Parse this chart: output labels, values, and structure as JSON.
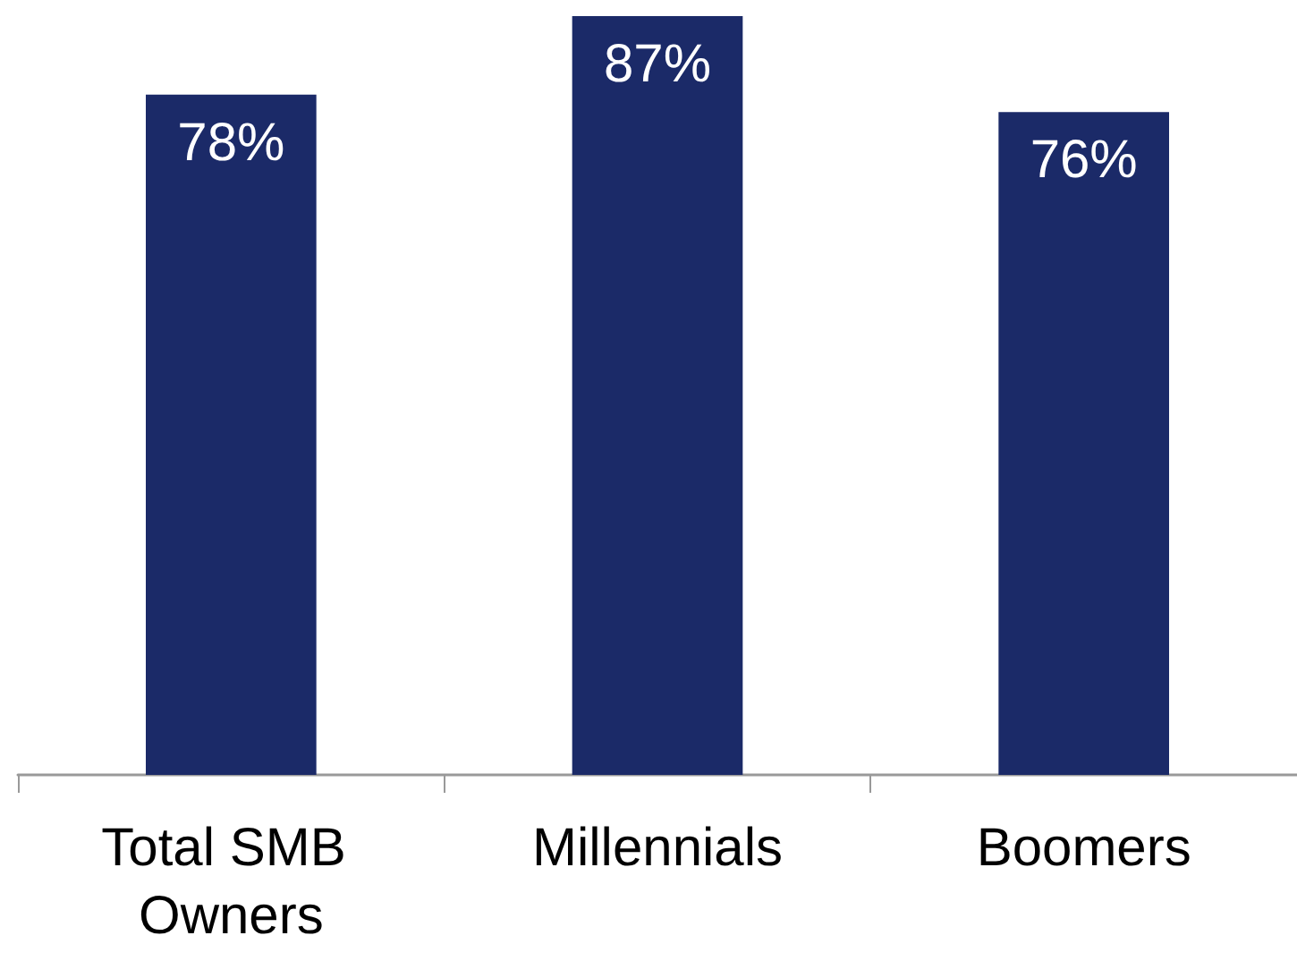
{
  "chart_data": {
    "type": "bar",
    "categories": [
      "Total SMB Owners",
      "Millennials",
      "Boomers"
    ],
    "values": [
      78,
      87,
      76
    ],
    "value_labels": [
      "78%",
      "87%",
      "76%"
    ],
    "color": "#1b2a68"
  }
}
